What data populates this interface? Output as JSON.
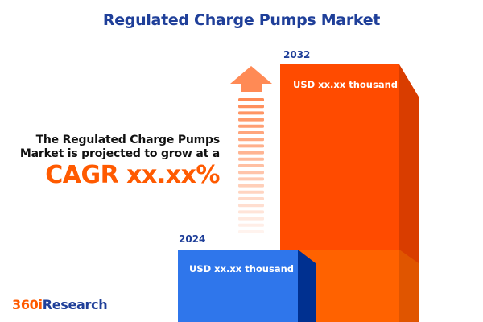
{
  "title": "Regulated Charge Pumps Market",
  "description_line1": "The Regulated Charge Pumps",
  "description_line2": "Market is projected to grow at a",
  "cagr_text": "CAGR xx.xx%",
  "logo": {
    "part1": "360i",
    "part2": "Research"
  },
  "colors": {
    "accent_orange": "#ff5a00",
    "brand_blue": "#1f3f99",
    "bar_2024": "#2f76eb",
    "bar_2032": "#ff4b00"
  },
  "chart_data": {
    "type": "bar",
    "categories": [
      "2024",
      "2032"
    ],
    "value_labels": [
      "USD xx.xx thousand",
      "USD xx.xx thousand"
    ],
    "title": "Regulated Charge Pumps Market",
    "annotation": "growth-arrow"
  }
}
